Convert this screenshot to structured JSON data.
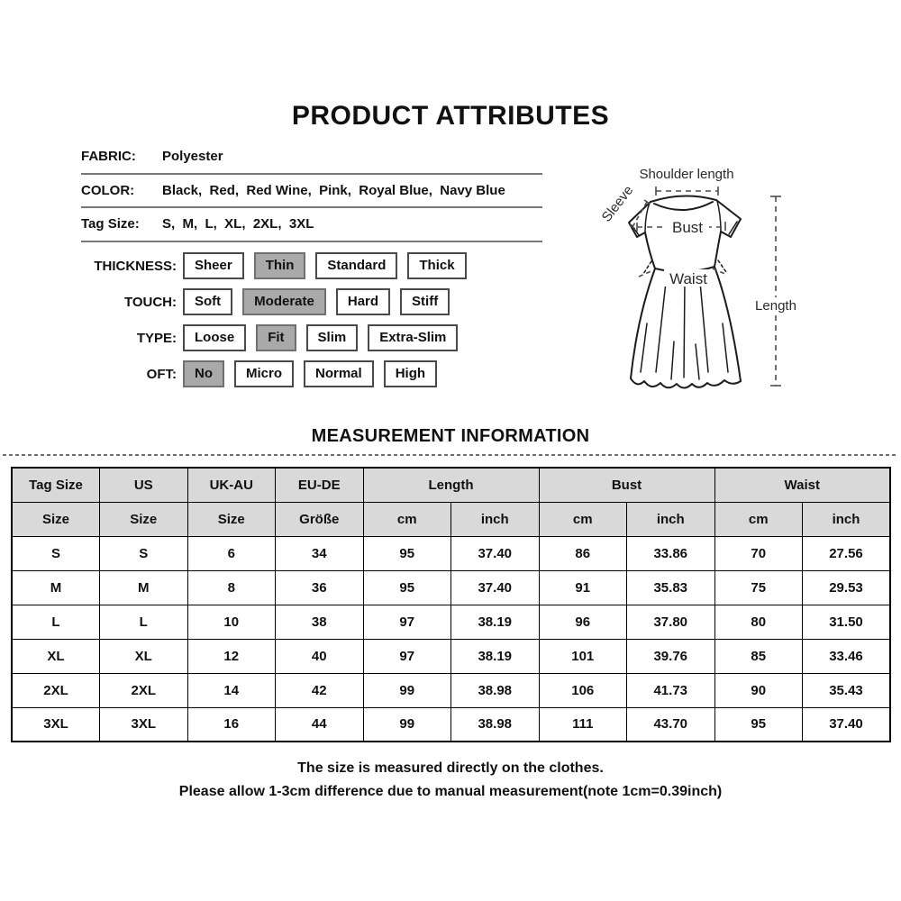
{
  "title": "PRODUCT ATTRIBUTES",
  "attributes": {
    "rows": [
      {
        "label": "FABRIC:",
        "value": "Polyester"
      },
      {
        "label": "COLOR:",
        "value": "Black,  Red,  Red Wine,  Pink,  Royal Blue,  Navy Blue"
      },
      {
        "label": "Tag Size:",
        "value": "S,  M,  L,  XL,  2XL,  3XL"
      }
    ]
  },
  "option_groups": [
    {
      "label": "THICKNESS:",
      "options": [
        "Sheer",
        "Thin",
        "Standard",
        "Thick"
      ],
      "selected": "Thin"
    },
    {
      "label": "TOUCH:",
      "options": [
        "Soft",
        "Moderate",
        "Hard",
        "Stiff"
      ],
      "selected": "Moderate"
    },
    {
      "label": "TYPE:",
      "options": [
        "Loose",
        "Fit",
        "Slim",
        "Extra-Slim"
      ],
      "selected": "Fit"
    },
    {
      "label": "OFT:",
      "options": [
        "No",
        "Micro",
        "Normal",
        "High"
      ],
      "selected": "No"
    }
  ],
  "diagram": {
    "shoulder_label": "Shoulder length",
    "sleeve_label": "Sleeve",
    "bust_label": "Bust",
    "waist_label": "Waist",
    "length_label": "Length"
  },
  "measurement": {
    "title": "MEASUREMENT INFORMATION",
    "table": {
      "header_row1": [
        {
          "label": "Tag Size",
          "colspan": 1
        },
        {
          "label": "US",
          "colspan": 1
        },
        {
          "label": "UK-AU",
          "colspan": 1
        },
        {
          "label": "EU-DE",
          "colspan": 1
        },
        {
          "label": "Length",
          "colspan": 2
        },
        {
          "label": "Bust",
          "colspan": 2
        },
        {
          "label": "Waist",
          "colspan": 2
        }
      ],
      "header_row2": [
        "Size",
        "Size",
        "Size",
        "Größe",
        "cm",
        "inch",
        "cm",
        "inch",
        "cm",
        "inch"
      ],
      "rows": [
        [
          "S",
          "S",
          "6",
          "34",
          "95",
          "37.40",
          "86",
          "33.86",
          "70",
          "27.56"
        ],
        [
          "M",
          "M",
          "8",
          "36",
          "95",
          "37.40",
          "91",
          "35.83",
          "75",
          "29.53"
        ],
        [
          "L",
          "L",
          "10",
          "38",
          "97",
          "38.19",
          "96",
          "37.80",
          "80",
          "31.50"
        ],
        [
          "XL",
          "XL",
          "12",
          "40",
          "97",
          "38.19",
          "101",
          "39.76",
          "85",
          "33.46"
        ],
        [
          "2XL",
          "2XL",
          "14",
          "42",
          "99",
          "38.98",
          "106",
          "41.73",
          "90",
          "35.43"
        ],
        [
          "3XL",
          "3XL",
          "16",
          "44",
          "99",
          "38.98",
          "111",
          "43.70",
          "95",
          "37.40"
        ]
      ]
    },
    "notes": [
      "The size is measured directly on the clothes.",
      "Please allow 1-3cm difference due to manual measurement(note 1cm=0.39inch)"
    ]
  },
  "colors": {
    "option_selected_bg": "#a9a9a9",
    "table_header_bg": "#d9d9d9",
    "divider_color": "#787878",
    "text_color": "#111111"
  }
}
